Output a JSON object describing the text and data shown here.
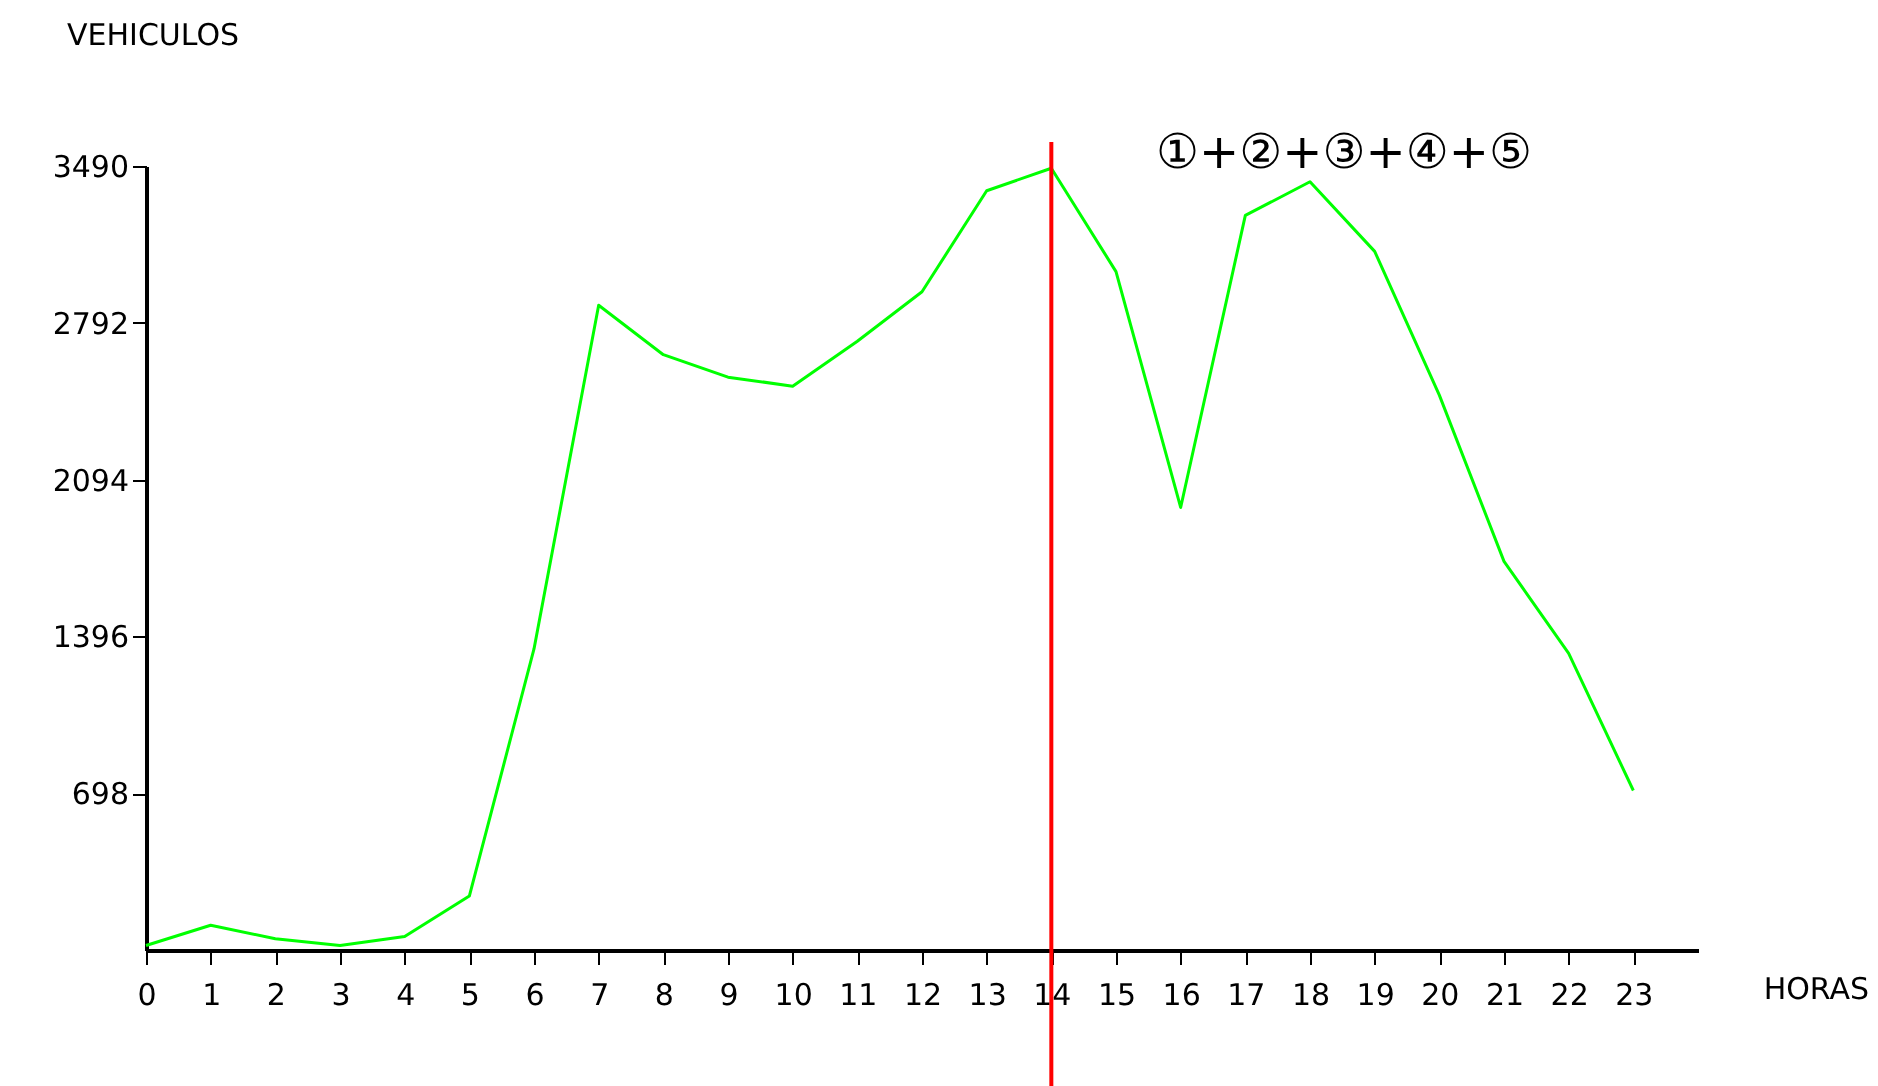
{
  "chart_data": {
    "type": "line",
    "ylabel": "VEHICULOS",
    "xlabel": "HORAS",
    "x": [
      0,
      1,
      2,
      3,
      4,
      5,
      6,
      7,
      8,
      9,
      10,
      11,
      12,
      13,
      14,
      15,
      16,
      17,
      18,
      19,
      20,
      21,
      22,
      23
    ],
    "series": [
      {
        "color": "#00ff00",
        "values": [
          20,
          110,
          50,
          20,
          60,
          240,
          1340,
          2870,
          2650,
          2550,
          2510,
          2710,
          2930,
          3380,
          3480,
          3020,
          1970,
          3270,
          3420,
          3110,
          2470,
          1730,
          1320,
          710
        ]
      }
    ],
    "xlim": [
      0,
      24
    ],
    "xticks": [
      0,
      1,
      2,
      3,
      4,
      5,
      6,
      7,
      8,
      9,
      10,
      11,
      12,
      13,
      14,
      15,
      16,
      17,
      18,
      19,
      20,
      21,
      22,
      23
    ],
    "ylim": [
      0,
      3490
    ],
    "yticks": [
      698,
      1396,
      2094,
      2792,
      3490
    ],
    "ref_lines": [
      {
        "axis": "x",
        "value": 14,
        "color": "#ff0000"
      }
    ],
    "annotations": [
      "①+②+③+④+⑤"
    ],
    "grid": false,
    "marker": "none",
    "line_style": "solid"
  }
}
